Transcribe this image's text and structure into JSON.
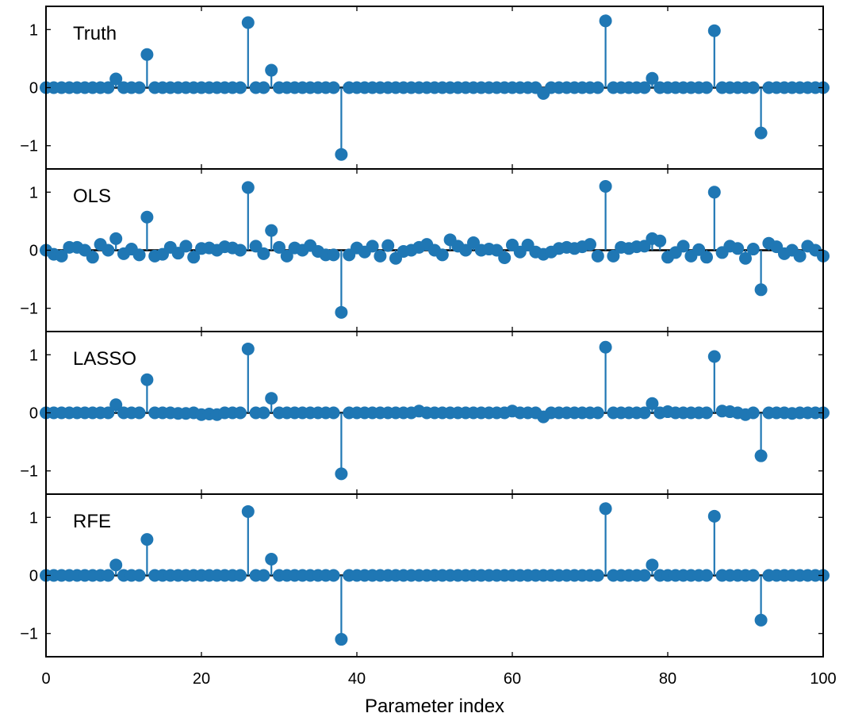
{
  "chart_data": {
    "type": "stem",
    "xlabel": "Parameter index",
    "xlim": [
      0,
      100
    ],
    "xticks": [
      0,
      20,
      40,
      60,
      80,
      100
    ],
    "ylim": [
      -1.4,
      1.4
    ],
    "yticks": [
      -1,
      0,
      1
    ],
    "ytick_labels": [
      "−1",
      "0",
      "1"
    ],
    "grid": false,
    "color": "#1f77b4",
    "panels": [
      {
        "title": "Truth",
        "points": [
          [
            9,
            0.15
          ],
          [
            13,
            0.57
          ],
          [
            26,
            1.12
          ],
          [
            29,
            0.3
          ],
          [
            38,
            -1.15
          ],
          [
            64,
            -0.1
          ],
          [
            72,
            1.15
          ],
          [
            78,
            0.16
          ],
          [
            86,
            0.98
          ],
          [
            92,
            -0.78
          ]
        ]
      },
      {
        "title": "OLS",
        "points": [
          [
            0,
            0.0
          ],
          [
            1,
            -0.07
          ],
          [
            2,
            -0.1
          ],
          [
            3,
            0.05
          ],
          [
            4,
            0.05
          ],
          [
            5,
            0.0
          ],
          [
            6,
            -0.12
          ],
          [
            7,
            0.1
          ],
          [
            8,
            0.0
          ],
          [
            9,
            0.2
          ],
          [
            10,
            -0.06
          ],
          [
            11,
            0.02
          ],
          [
            12,
            -0.08
          ],
          [
            13,
            0.57
          ],
          [
            14,
            -0.1
          ],
          [
            15,
            -0.07
          ],
          [
            16,
            0.05
          ],
          [
            17,
            -0.05
          ],
          [
            18,
            0.07
          ],
          [
            19,
            -0.12
          ],
          [
            20,
            0.03
          ],
          [
            21,
            0.04
          ],
          [
            22,
            0.0
          ],
          [
            23,
            0.06
          ],
          [
            24,
            0.04
          ],
          [
            25,
            0.0
          ],
          [
            26,
            1.08
          ],
          [
            27,
            0.07
          ],
          [
            28,
            -0.06
          ],
          [
            29,
            0.34
          ],
          [
            30,
            0.05
          ],
          [
            31,
            -0.1
          ],
          [
            32,
            0.04
          ],
          [
            33,
            0.0
          ],
          [
            34,
            0.08
          ],
          [
            35,
            -0.02
          ],
          [
            36,
            -0.08
          ],
          [
            37,
            -0.08
          ],
          [
            38,
            -1.07
          ],
          [
            39,
            -0.08
          ],
          [
            40,
            0.04
          ],
          [
            41,
            -0.03
          ],
          [
            42,
            0.07
          ],
          [
            43,
            -0.1
          ],
          [
            44,
            0.08
          ],
          [
            45,
            -0.14
          ],
          [
            46,
            -0.02
          ],
          [
            47,
            0.0
          ],
          [
            48,
            0.05
          ],
          [
            49,
            0.1
          ],
          [
            50,
            0.0
          ],
          [
            51,
            -0.08
          ],
          [
            52,
            0.18
          ],
          [
            53,
            0.07
          ],
          [
            54,
            0.0
          ],
          [
            55,
            0.13
          ],
          [
            56,
            0.0
          ],
          [
            57,
            0.02
          ],
          [
            58,
            0.0
          ],
          [
            59,
            -0.13
          ],
          [
            60,
            0.09
          ],
          [
            61,
            -0.03
          ],
          [
            62,
            0.09
          ],
          [
            63,
            -0.03
          ],
          [
            64,
            -0.07
          ],
          [
            65,
            -0.03
          ],
          [
            66,
            0.03
          ],
          [
            67,
            0.05
          ],
          [
            68,
            0.03
          ],
          [
            69,
            0.06
          ],
          [
            70,
            0.1
          ],
          [
            71,
            -0.1
          ],
          [
            72,
            1.1
          ],
          [
            73,
            -0.1
          ],
          [
            74,
            0.05
          ],
          [
            75,
            0.03
          ],
          [
            76,
            0.06
          ],
          [
            77,
            0.07
          ],
          [
            78,
            0.2
          ],
          [
            79,
            0.16
          ],
          [
            80,
            -0.12
          ],
          [
            81,
            -0.04
          ],
          [
            82,
            0.07
          ],
          [
            83,
            -0.1
          ],
          [
            84,
            0.01
          ],
          [
            85,
            -0.12
          ],
          [
            86,
            1.0
          ],
          [
            87,
            -0.04
          ],
          [
            88,
            0.07
          ],
          [
            89,
            0.03
          ],
          [
            90,
            -0.14
          ],
          [
            91,
            0.02
          ],
          [
            92,
            -0.68
          ],
          [
            93,
            0.12
          ],
          [
            94,
            0.06
          ],
          [
            95,
            -0.06
          ],
          [
            96,
            0.0
          ],
          [
            97,
            -0.1
          ],
          [
            98,
            0.07
          ],
          [
            99,
            0.0
          ],
          [
            100,
            -0.1
          ]
        ]
      },
      {
        "title": "LASSO",
        "points": [
          [
            9,
            0.14
          ],
          [
            13,
            0.57
          ],
          [
            17,
            -0.01
          ],
          [
            18,
            -0.01
          ],
          [
            20,
            -0.03
          ],
          [
            21,
            -0.02
          ],
          [
            22,
            -0.03
          ],
          [
            26,
            1.1
          ],
          [
            29,
            0.25
          ],
          [
            38,
            -1.05
          ],
          [
            48,
            0.03
          ],
          [
            60,
            0.03
          ],
          [
            64,
            -0.07
          ],
          [
            72,
            1.13
          ],
          [
            78,
            0.16
          ],
          [
            80,
            0.02
          ],
          [
            86,
            0.97
          ],
          [
            87,
            0.03
          ],
          [
            88,
            0.02
          ],
          [
            90,
            -0.03
          ],
          [
            92,
            -0.74
          ],
          [
            96,
            -0.01
          ]
        ]
      },
      {
        "title": "RFE",
        "points": [
          [
            9,
            0.18
          ],
          [
            13,
            0.62
          ],
          [
            26,
            1.1
          ],
          [
            29,
            0.28
          ],
          [
            38,
            -1.1
          ],
          [
            72,
            1.15
          ],
          [
            78,
            0.18
          ],
          [
            86,
            1.02
          ],
          [
            92,
            -0.77
          ]
        ]
      }
    ]
  }
}
